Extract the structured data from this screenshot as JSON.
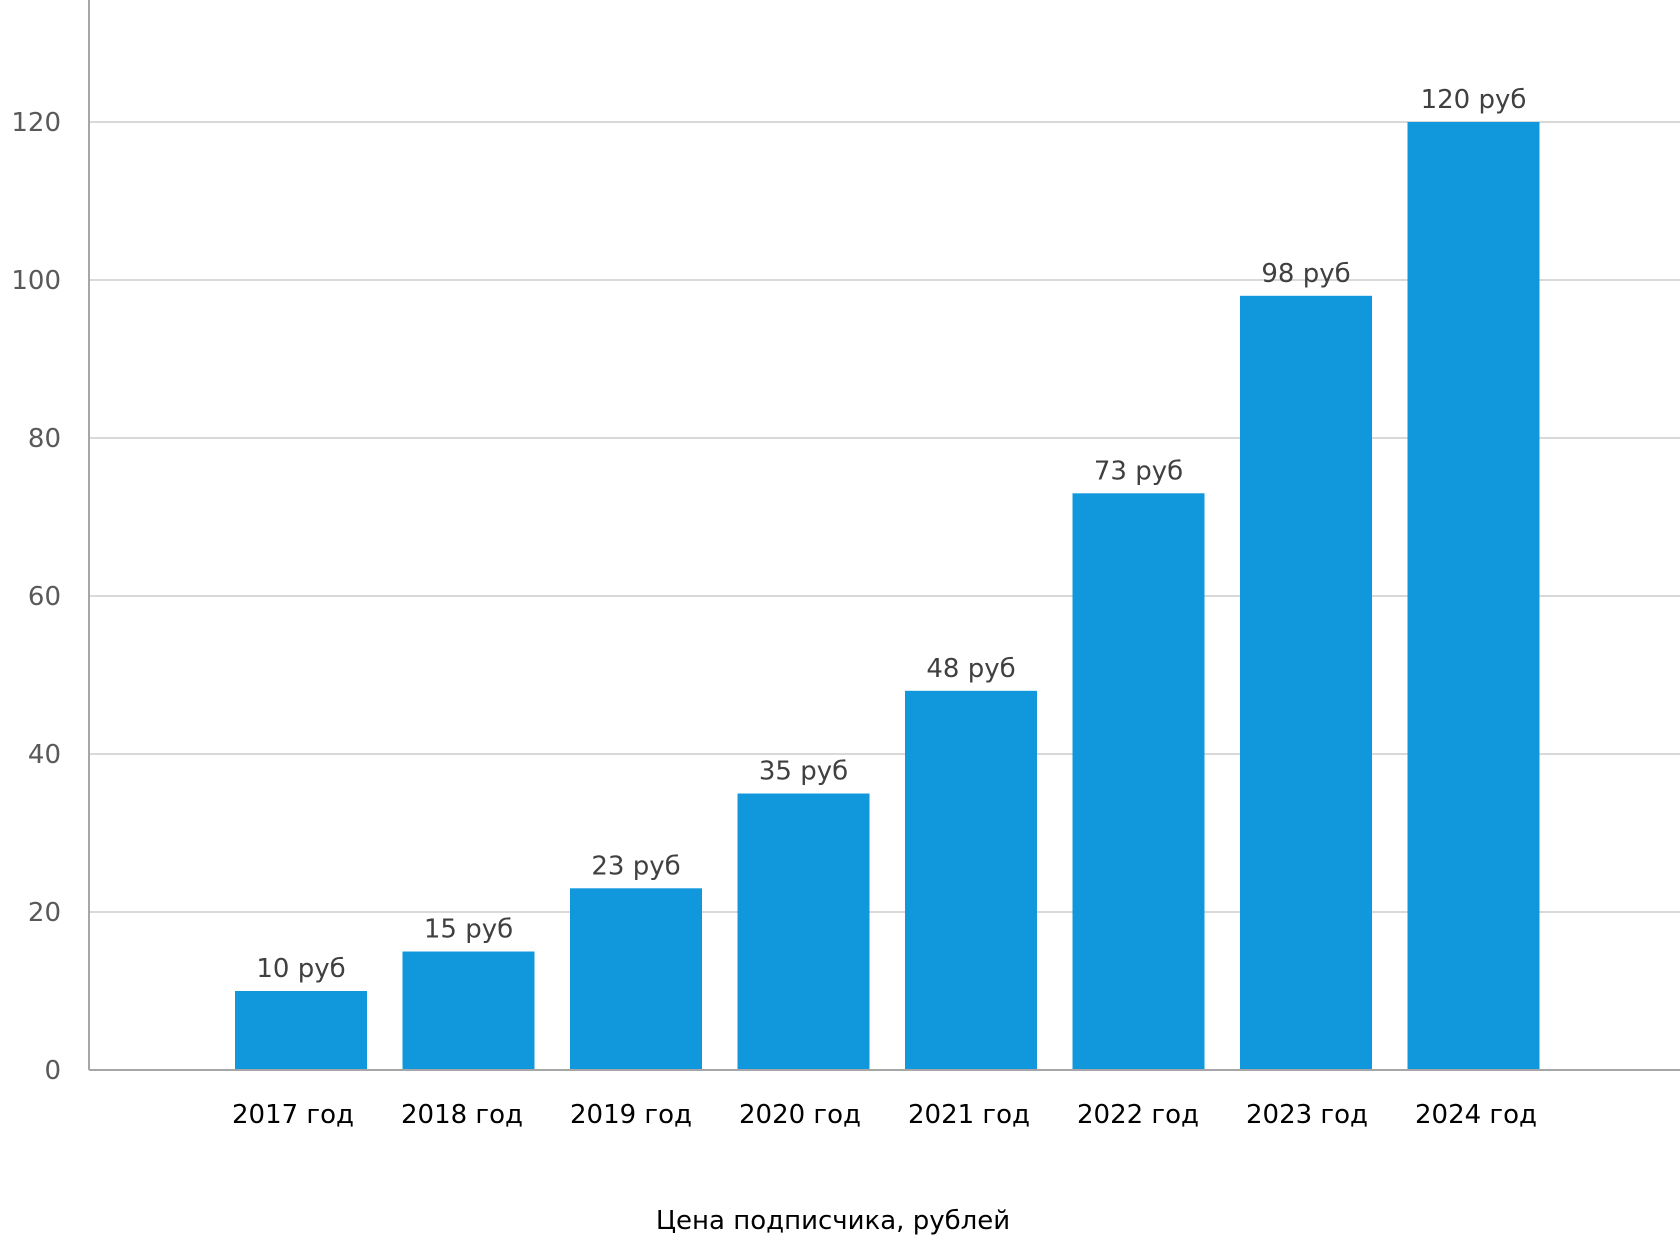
{
  "chart_data": {
    "type": "bar",
    "categories": [
      "2017 год",
      "2018 год",
      "2019 год",
      "2020 год",
      "2021 год",
      "2022 год",
      "2023 год",
      "2024 год"
    ],
    "values": [
      10,
      15,
      23,
      35,
      48,
      73,
      98,
      120
    ],
    "data_labels": [
      "10 руб",
      "15 руб",
      "23 руб",
      "35 руб",
      "48 руб",
      "73 руб",
      "98 руб",
      "120 руб"
    ],
    "title": "",
    "xlabel": "Цена подписчика, рублей",
    "ylabel": "",
    "ylim": [
      0,
      120
    ],
    "yticks": [
      0,
      20,
      40,
      60,
      80,
      100,
      120
    ],
    "grid": true,
    "legend": "none",
    "colors": {
      "bar": "#1198DC",
      "grid": "#D9D9D9",
      "axis": "#A6A6A6"
    }
  }
}
